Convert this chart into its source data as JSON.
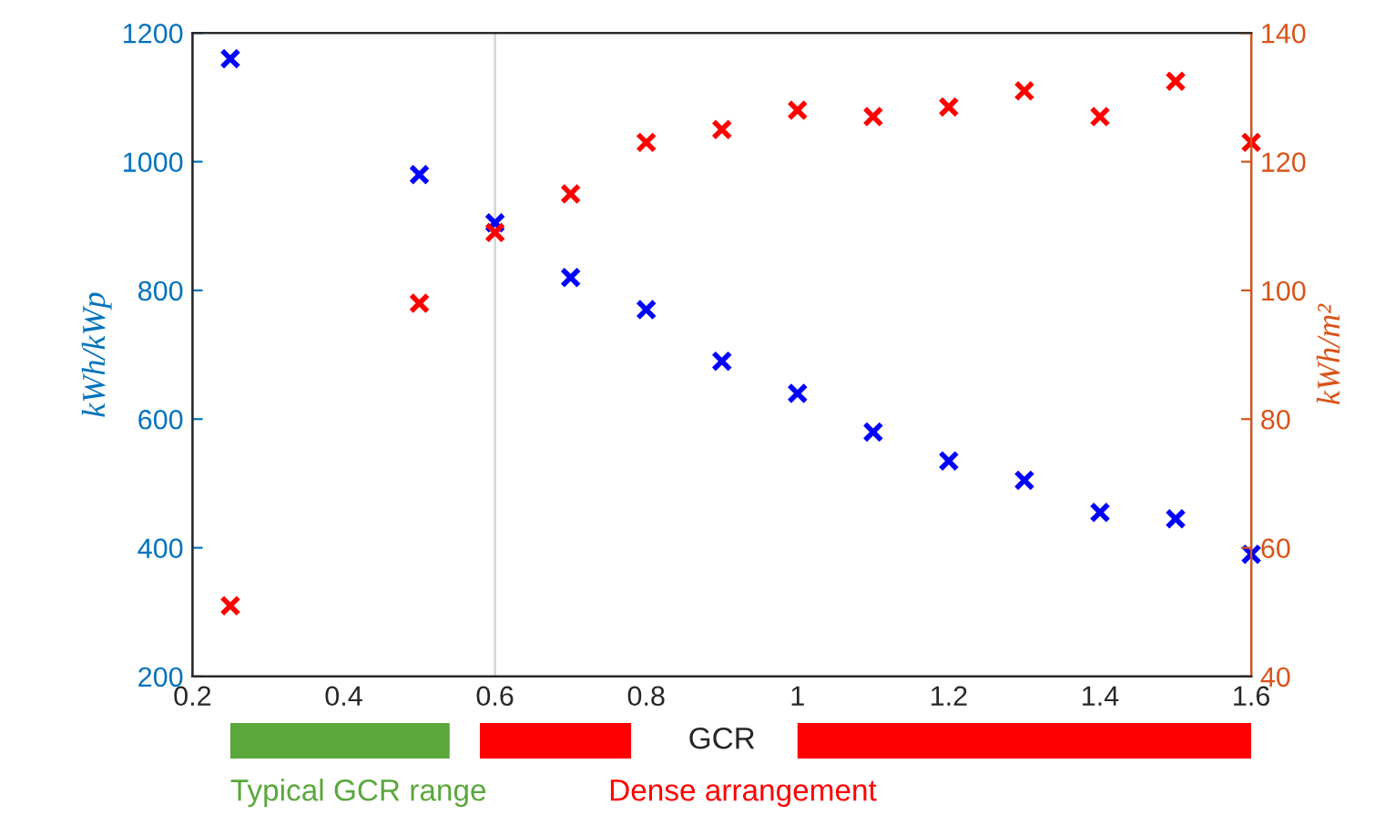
{
  "chart_data": {
    "type": "scatter",
    "xlabel": "GCR",
    "ylabel": "kWh/kWp",
    "y2label": "kWh/m²",
    "x": [
      0.25,
      0.5,
      0.6,
      0.7,
      0.8,
      0.9,
      1.0,
      1.1,
      1.2,
      1.3,
      1.4,
      1.5,
      1.6
    ],
    "series": [
      {
        "color": "#0000ff",
        "values": [
          1160,
          980,
          905,
          820,
          770,
          690,
          640,
          580,
          535,
          505,
          455,
          445,
          390
        ]
      },
      {
        "color": "#ff0000",
        "axis": "y2",
        "values": [
          51,
          98,
          109,
          115,
          123,
          125,
          128,
          127,
          128.5,
          131,
          127,
          132.5,
          123
        ]
      }
    ],
    "marker": "cross",
    "xlim": [
      0.2,
      1.6
    ],
    "xticks": [
      0.2,
      0.4,
      0.6,
      0.8,
      1,
      1.2,
      1.4,
      1.6
    ],
    "ylim": [
      200,
      1200
    ],
    "yticks": [
      200,
      400,
      600,
      800,
      1000,
      1200
    ],
    "y2lim": [
      40,
      140
    ],
    "y2ticks": [
      40,
      60,
      80,
      100,
      120,
      140
    ],
    "ref_lines": [
      {
        "axis": "x",
        "value": 0.6,
        "color": "#d9d9d9"
      }
    ],
    "annotations": [
      "Typical GCR range",
      "Dense arrangement"
    ],
    "grid": false,
    "legend": false
  }
}
